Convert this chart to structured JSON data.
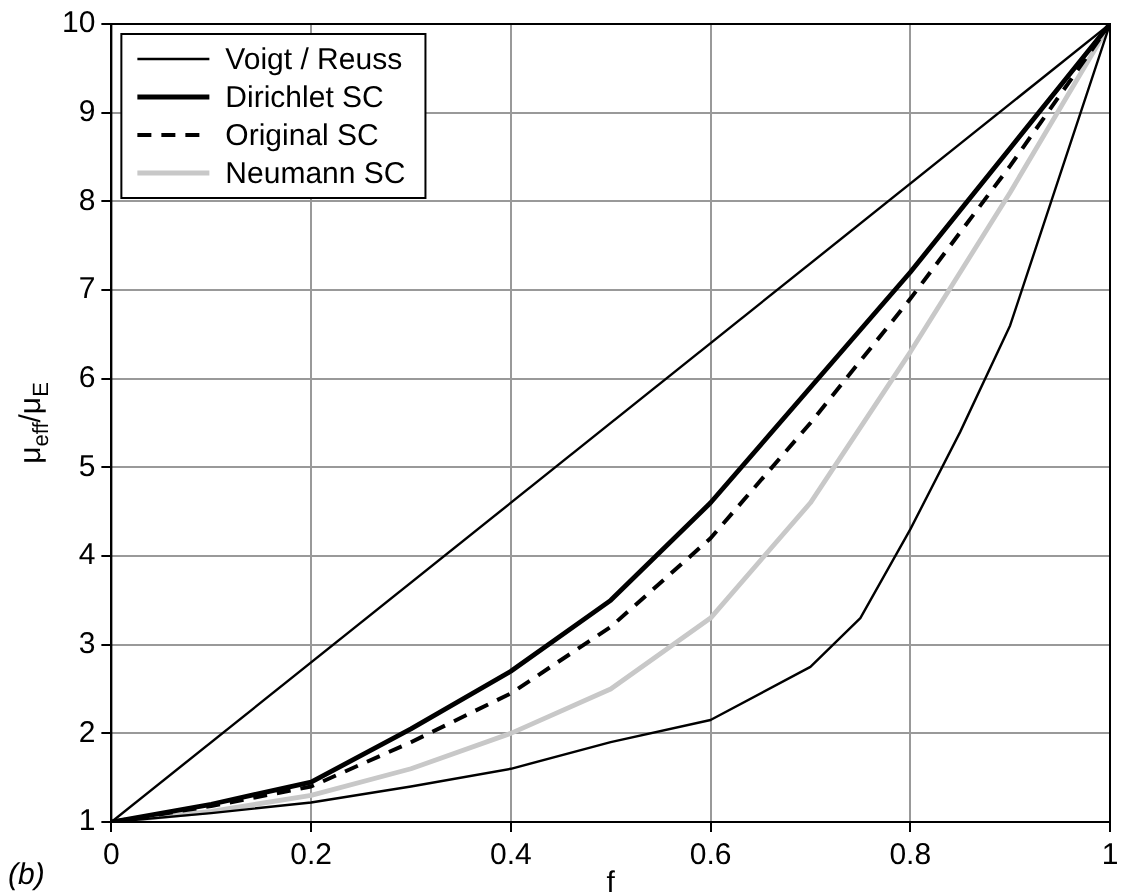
{
  "chart_data": {
    "type": "line",
    "xlabel": "f",
    "ylabel": "μ$_{eff}$/μ$_{E}$",
    "annotations": [
      "(b)"
    ],
    "xlim": [
      0,
      1
    ],
    "xticks": [
      0,
      0.2,
      0.4,
      0.6,
      0.8,
      1
    ],
    "ylim": [
      1,
      10
    ],
    "yticks": [
      1,
      2,
      3,
      4,
      5,
      6,
      7,
      8,
      9,
      10
    ],
    "grid": true,
    "legend": "top left",
    "marker": "none",
    "series": [
      {
        "name": "Voigt / Reuss",
        "color": "#000000",
        "line_style": "solid",
        "x": [
          0,
          1
        ],
        "values": [
          1,
          10
        ]
      },
      {
        "color": "#000000",
        "line_style": "solid",
        "x": [
          0,
          0.1,
          0.2,
          0.3,
          0.4,
          0.5,
          0.6,
          0.7,
          0.75,
          0.8,
          0.85,
          0.9,
          0.95,
          1
        ],
        "values": [
          1,
          1.1,
          1.22,
          1.4,
          1.6,
          1.9,
          2.15,
          2.75,
          3.3,
          4.3,
          5.4,
          6.6,
          8.3,
          10
        ]
      },
      {
        "name": "Dirichlet SC",
        "color": "#000000",
        "line_style": "solid",
        "x": [
          0,
          0.1,
          0.2,
          0.3,
          0.4,
          0.5,
          0.6,
          0.7,
          0.8,
          0.9,
          1
        ],
        "values": [
          1,
          1.2,
          1.45,
          2.05,
          2.7,
          3.5,
          4.6,
          5.9,
          7.2,
          8.6,
          10
        ]
      },
      {
        "name": "Original SC",
        "color": "#000000",
        "line_style": "dashed",
        "x": [
          0,
          0.1,
          0.2,
          0.3,
          0.4,
          0.5,
          0.6,
          0.7,
          0.8,
          0.9,
          1
        ],
        "values": [
          1,
          1.18,
          1.4,
          1.9,
          2.45,
          3.2,
          4.2,
          5.5,
          6.9,
          8.4,
          10
        ]
      },
      {
        "name": "Neumann SC",
        "color": "#c8c8c8",
        "line_style": "solid",
        "x": [
          0,
          0.1,
          0.2,
          0.3,
          0.4,
          0.5,
          0.6,
          0.7,
          0.8,
          0.9,
          1
        ],
        "values": [
          1,
          1.12,
          1.3,
          1.6,
          2,
          2.5,
          3.3,
          4.6,
          6.3,
          8.1,
          10
        ]
      }
    ]
  }
}
